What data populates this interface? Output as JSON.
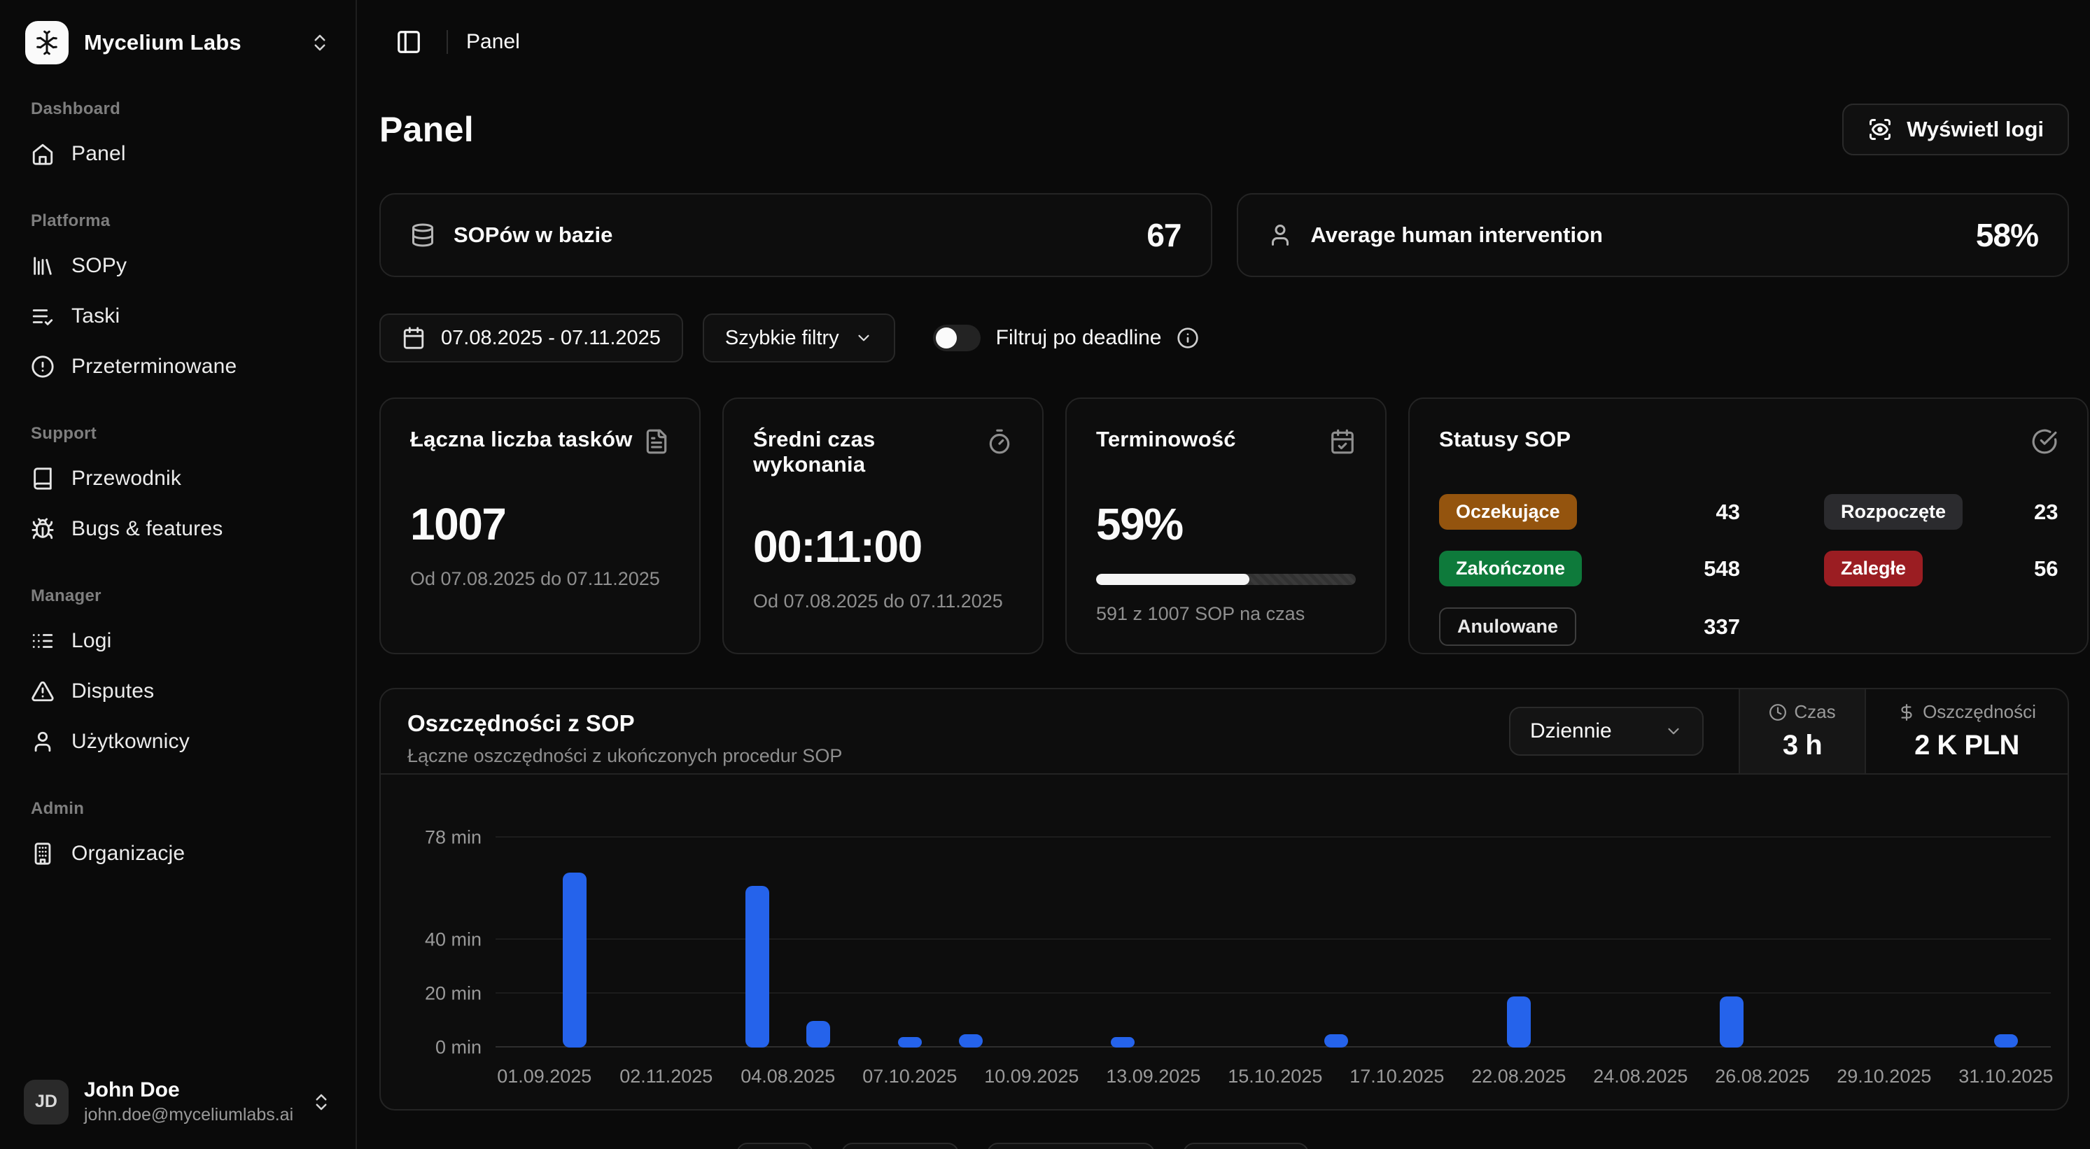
{
  "sidebar": {
    "org_name": "Mycelium Labs",
    "sections": [
      {
        "label": "Dashboard",
        "items": [
          {
            "id": "panel",
            "label": "Panel",
            "icon": "home-icon"
          }
        ]
      },
      {
        "label": "Platforma",
        "items": [
          {
            "id": "sopy",
            "label": "SOPy",
            "icon": "library-icon"
          },
          {
            "id": "taski",
            "label": "Taski",
            "icon": "list-check-icon"
          },
          {
            "id": "przeterminowane",
            "label": "Przeterminowane",
            "icon": "alert-circle-icon"
          }
        ]
      },
      {
        "label": "Support",
        "items": [
          {
            "id": "przewodnik",
            "label": "Przewodnik",
            "icon": "book-icon"
          },
          {
            "id": "bugs-features",
            "label": "Bugs & features",
            "icon": "bug-icon"
          }
        ]
      },
      {
        "label": "Manager",
        "items": [
          {
            "id": "logi",
            "label": "Logi",
            "icon": "logs-icon"
          },
          {
            "id": "disputes",
            "label": "Disputes",
            "icon": "triangle-alert-icon"
          },
          {
            "id": "uzytkownicy",
            "label": "Użytkownicy",
            "icon": "user-icon"
          }
        ]
      },
      {
        "label": "Admin",
        "items": [
          {
            "id": "organizacje",
            "label": "Organizacje",
            "icon": "building-icon"
          }
        ]
      }
    ],
    "user": {
      "initials": "JD",
      "name": "John Doe",
      "email": "john.doe@myceliumlabs.ai"
    }
  },
  "topbar": {
    "breadcrumb": "Panel"
  },
  "page": {
    "title": "Panel",
    "view_logs_label": "Wyświetl logi"
  },
  "stat_cards": [
    {
      "label": "SOPów w bazie",
      "value": "67",
      "icon": "database-icon"
    },
    {
      "label": "Average human intervention",
      "value": "58%",
      "icon": "user-icon"
    }
  ],
  "filters": {
    "date_range": "07.08.2025 - 07.11.2025",
    "quick_filters_label": "Szybkie filtry",
    "deadline_toggle_label": "Filtruj po deadline",
    "toggle_on": false
  },
  "metric_cards": {
    "total_tasks": {
      "title": "Łączna liczba tasków",
      "icon": "file-text-icon",
      "value": "1007",
      "subtitle": "Od 07.08.2025 do 07.11.2025"
    },
    "avg_time": {
      "title": "Średni czas wykonania",
      "icon": "timer-icon",
      "value": "00:11:00",
      "subtitle": "Od 07.08.2025 do 07.11.2025"
    },
    "timeliness": {
      "title": "Terminowość",
      "icon": "calendar-check-icon",
      "value": "59%",
      "progress_pct": 59,
      "subtitle": "591 z 1007 SOP na czas"
    },
    "statuses": {
      "title": "Statusy SOP",
      "icon": "circle-check-icon",
      "items": [
        {
          "label": "Oczekujące",
          "count": "43",
          "color": "#94540e",
          "outline": false
        },
        {
          "label": "Rozpoczęte",
          "count": "23",
          "color": "#2b2b2e",
          "outline": false
        },
        {
          "label": "Zakończone",
          "count": "548",
          "color": "#0e7a3b",
          "outline": false
        },
        {
          "label": "Zaległe",
          "count": "56",
          "color": "#9b1d22",
          "outline": false
        },
        {
          "label": "Anulowane",
          "count": "337",
          "color": "transparent",
          "outline": true
        }
      ]
    }
  },
  "savings_card": {
    "title": "Oszczędności z SOP",
    "subtitle": "Łączne oszczędności z ukończonych procedur SOP",
    "period_selected": "Dziennie",
    "tabs": [
      {
        "label": "Czas",
        "value": "3 h",
        "icon": "clock-icon"
      },
      {
        "label": "Oszczędności",
        "value": "2 K PLN",
        "icon": "dollar-icon"
      }
    ]
  },
  "chart_data": {
    "type": "bar",
    "title": "Oszczędności z SOP",
    "unit": "min",
    "ylim": [
      0,
      78
    ],
    "y_ticks": [
      0,
      20,
      40,
      78
    ],
    "grid": true,
    "bar_color": "#2563eb",
    "x_labels": [
      "01.09.2025",
      "02.11.2025",
      "04.08.2025",
      "07.10.2025",
      "10.09.2025",
      "13.09.2025",
      "15.10.2025",
      "17.10.2025",
      "22.08.2025",
      "24.08.2025",
      "26.08.2025",
      "29.10.2025",
      "31.10.2025"
    ],
    "bars": [
      {
        "x_index": 0.25,
        "minutes": 65
      },
      {
        "x_index": 1.75,
        "minutes": 60
      },
      {
        "x_index": 2.25,
        "minutes": 10
      },
      {
        "x_index": 3.0,
        "minutes": 4
      },
      {
        "x_index": 3.5,
        "minutes": 5
      },
      {
        "x_index": 4.75,
        "minutes": 4
      },
      {
        "x_index": 6.5,
        "minutes": 5
      },
      {
        "x_index": 8.0,
        "minutes": 19
      },
      {
        "x_index": 9.75,
        "minutes": 19
      },
      {
        "x_index": 12.0,
        "minutes": 5
      }
    ]
  },
  "colors": {
    "accent_blue": "#2563eb",
    "progress_fill": "#f5f5f5"
  }
}
